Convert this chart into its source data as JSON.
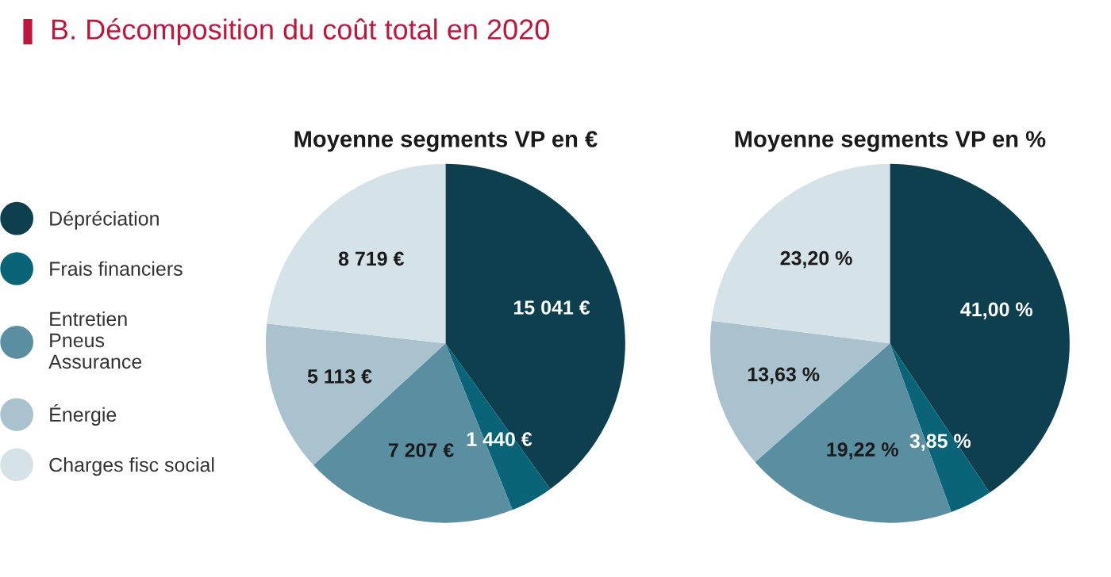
{
  "chart_data": [
    {
      "type": "pie",
      "title": "B. Décomposition du coût total en 2020",
      "subtitle": "Moyenne segments VP en €",
      "categories": [
        "Dépréciation",
        "Frais financiers",
        "Entretien\nPneus\nAssurance",
        "Énergie",
        "Charges fisc social"
      ],
      "values": [
        15041,
        1440,
        7207,
        5113,
        8719
      ],
      "value_labels": [
        "15 041 €",
        "1 440 €",
        "7 207 €",
        "5 113 €",
        "8 719 €"
      ],
      "colors": [
        "#0d3f4f",
        "#0a6478",
        "#5a8fa2",
        "#a9c2cd",
        "#d5e2e7"
      ],
      "legend": "left"
    },
    {
      "type": "pie",
      "subtitle": "Moyenne segments VP en %",
      "categories": [
        null,
        null,
        null,
        null,
        null
      ],
      "values": [
        41.0,
        3.85,
        19.22,
        13.63,
        23.2
      ],
      "value_labels": [
        "41,00 %",
        "3,85 %",
        "19,22 %",
        "13,63 %",
        "23,20 %"
      ],
      "colors": [
        "#0d3f4f",
        "#0a6478",
        "#5a8fa2",
        "#a9c2cd",
        "#d5e2e7"
      ]
    }
  ]
}
